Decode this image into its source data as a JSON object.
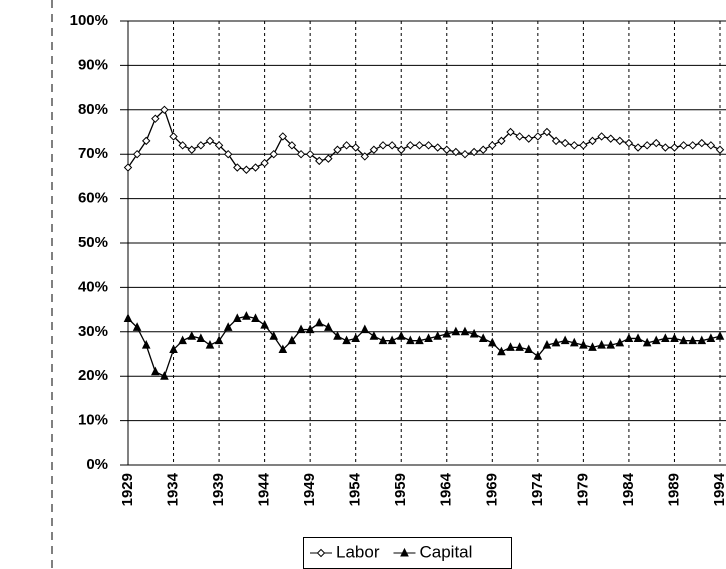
{
  "chart_data": {
    "type": "line",
    "x": [
      1929,
      1930,
      1931,
      1932,
      1933,
      1934,
      1935,
      1936,
      1937,
      1938,
      1939,
      1940,
      1941,
      1942,
      1943,
      1944,
      1945,
      1946,
      1947,
      1948,
      1949,
      1950,
      1951,
      1952,
      1953,
      1954,
      1955,
      1956,
      1957,
      1958,
      1959,
      1960,
      1961,
      1962,
      1963,
      1964,
      1965,
      1966,
      1967,
      1968,
      1969,
      1970,
      1971,
      1972,
      1973,
      1974,
      1975,
      1976,
      1977,
      1978,
      1979,
      1980,
      1981,
      1982,
      1983,
      1984,
      1985,
      1986,
      1987,
      1988,
      1989,
      1990,
      1991,
      1992,
      1993,
      1994
    ],
    "series": [
      {
        "name": "Labor",
        "color": "#000000",
        "marker": "diamond",
        "values": [
          67,
          70,
          73,
          78,
          80,
          74,
          72,
          71,
          72,
          73,
          72,
          70,
          67,
          66.5,
          67,
          68,
          70,
          74,
          72,
          70,
          70,
          68.5,
          69,
          71,
          72,
          71.5,
          69.5,
          71,
          72,
          72,
          71,
          72,
          72,
          72,
          71.5,
          71,
          70.5,
          70,
          70.5,
          71,
          72,
          73,
          75,
          74,
          73.5,
          74,
          75,
          73,
          72.5,
          72,
          72,
          73,
          74,
          73.5,
          73,
          72.5,
          71.5,
          72,
          72.5,
          71.5,
          71.5,
          72,
          72,
          72.5,
          72,
          71
        ]
      },
      {
        "name": "Capital",
        "color": "#000000",
        "marker": "triangle",
        "values": [
          33,
          31,
          27,
          21,
          20,
          26,
          28,
          29,
          28.5,
          27,
          28,
          31,
          33,
          33.5,
          33,
          31.5,
          29,
          26,
          28,
          30.5,
          30.5,
          32,
          31,
          29,
          28,
          28.5,
          30.5,
          29,
          28,
          28,
          29,
          28,
          28,
          28.5,
          29,
          29.5,
          30,
          30,
          29.5,
          28.5,
          27.5,
          25.5,
          26.5,
          26.5,
          26,
          24.5,
          27,
          27.5,
          28,
          27.5,
          27,
          26.5,
          27,
          27,
          27.5,
          28.5,
          28.5,
          27.5,
          28,
          28.5,
          28.5,
          28,
          28,
          28,
          28.5,
          29
        ]
      }
    ],
    "xlim": [
      1929,
      1994
    ],
    "xticks": [
      1929,
      1934,
      1939,
      1944,
      1949,
      1954,
      1959,
      1964,
      1969,
      1974,
      1979,
      1984,
      1989,
      1994
    ],
    "ylim": [
      0,
      100
    ],
    "yticks": [
      {
        "value": 0,
        "label": "0%"
      },
      {
        "value": 10,
        "label": "10%"
      },
      {
        "value": 20,
        "label": "20%"
      },
      {
        "value": 30,
        "label": "30%"
      },
      {
        "value": 40,
        "label": "40%"
      },
      {
        "value": 50,
        "label": "50%"
      },
      {
        "value": 60,
        "label": "60%"
      },
      {
        "value": 70,
        "label": "70%"
      },
      {
        "value": 80,
        "label": "80%"
      },
      {
        "value": 90,
        "label": "90%"
      },
      {
        "value": 100,
        "label": "100%"
      }
    ],
    "grid": true
  }
}
